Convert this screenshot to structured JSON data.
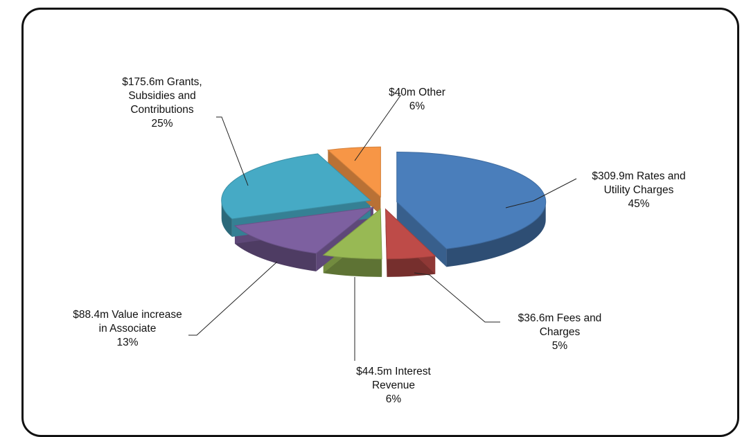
{
  "chart_data": {
    "type": "pie",
    "title": "",
    "slices": [
      {
        "label_lines": [
          "$309.9m Rates and",
          "Utility Charges",
          "45%"
        ],
        "value": 309.9,
        "percent": 45,
        "color": "#4a7ebb"
      },
      {
        "label_lines": [
          "$36.6m Fees and",
          "Charges",
          "5%"
        ],
        "value": 36.6,
        "percent": 5,
        "color": "#be4b48"
      },
      {
        "label_lines": [
          "$44.5m Interest",
          "Revenue",
          "6%"
        ],
        "value": 44.5,
        "percent": 6,
        "color": "#98b954"
      },
      {
        "label_lines": [
          "$88.4m Value increase",
          "in Associate",
          "13%"
        ],
        "value": 88.4,
        "percent": 13,
        "color": "#7d60a0"
      },
      {
        "label_lines": [
          "$175.6m Grants,",
          "Subsidies and",
          "Contributions",
          "25%"
        ],
        "value": 175.6,
        "percent": 25,
        "color": "#46aac5"
      },
      {
        "label_lines": [
          "$40m Other",
          "6%"
        ],
        "value": 40,
        "percent": 6,
        "color": "#f79646"
      }
    ]
  }
}
